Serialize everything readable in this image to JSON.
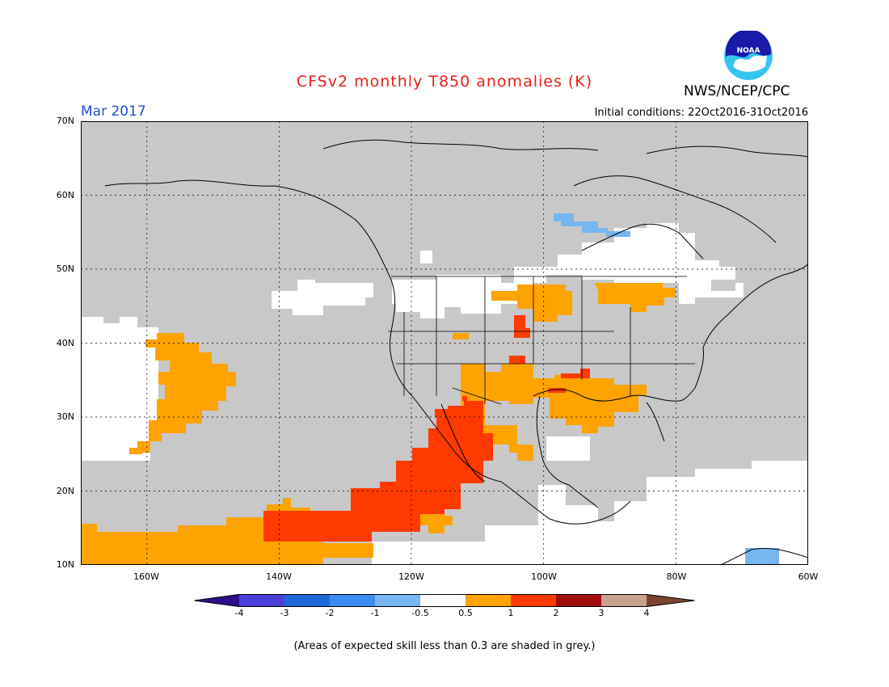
{
  "header": {
    "title": "CFSv2 monthly T850 anomalies (K)",
    "agency": "NWS/NCEP/CPC",
    "logo_text": "NOAA",
    "month": "Mar 2017",
    "initial_conditions": "Initial conditions: 22Oct2016-31Oct2016"
  },
  "map": {
    "lat_labels": [
      "70N",
      "60N",
      "50N",
      "40N",
      "30N",
      "20N",
      "10N"
    ],
    "lon_labels": [
      "160W",
      "140W",
      "120W",
      "100W",
      "80W",
      "60W"
    ],
    "region": "North America / Eastern Pacific",
    "colors": {
      "grey_low_skill": "#c8c8c8",
      "neutral": "#ffffff",
      "warm_0_5_1": "#ffa300",
      "warm_1_2": "#ff3a00",
      "cool_minus1_minus0_5": "#77b6f0"
    }
  },
  "colorbar": {
    "labels": [
      "-4",
      "-3",
      "-2",
      "-1",
      "-0.5",
      "0.5",
      "1",
      "2",
      "3",
      "4"
    ],
    "colors": [
      "#2a0f88",
      "#4b3fd8",
      "#1f68d8",
      "#3b8cf0",
      "#77b6f0",
      "#ffffff",
      "#ffa300",
      "#ff3a00",
      "#a00d0d",
      "#c8a08e",
      "#7a4430"
    ]
  },
  "footnote": "(Areas of expected skill less than 0.3 are shaded in grey.)"
}
